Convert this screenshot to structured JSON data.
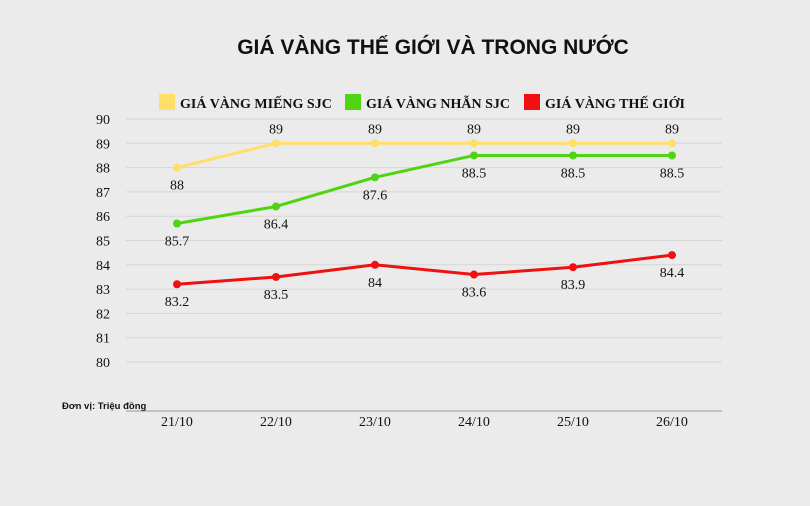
{
  "chart_data": {
    "type": "line",
    "title": "GIÁ VÀNG THẾ GIỚI VÀ TRONG NƯỚC",
    "unit_note": "Đơn vị: Triệu đồng",
    "categories": [
      "21/10",
      "22/10",
      "23/10",
      "24/10",
      "25/10",
      "26/10"
    ],
    "y_ticks": [
      "90",
      "89",
      "88",
      "87",
      "86",
      "85",
      "84",
      "83",
      "82",
      "81",
      "80"
    ],
    "tick_values": [
      90,
      89,
      88,
      87,
      86,
      85,
      84,
      83,
      82,
      81,
      80
    ],
    "grid": true,
    "legend_position": "top",
    "series": [
      {
        "name": "GIÁ VÀNG MIẾNG SJC",
        "color": "#fee068",
        "values": [
          88,
          89,
          89,
          89,
          89,
          89
        ],
        "labels": [
          "88",
          "89",
          "89",
          "89",
          "89",
          "89"
        ],
        "label_position": [
          "below",
          "above",
          "above",
          "above",
          "above",
          "above"
        ]
      },
      {
        "name": "GIÁ VÀNG NHẪN SJC",
        "color": "#4fd411",
        "values": [
          85.7,
          86.4,
          87.6,
          88.5,
          88.5,
          88.5
        ],
        "labels": [
          "85.7",
          "86.4",
          "87.6",
          "88.5",
          "88.5",
          "88.5"
        ],
        "label_position": [
          "below",
          "below",
          "below",
          "below",
          "below",
          "below"
        ]
      },
      {
        "name": "GIÁ VÀNG THẾ GIỚI",
        "color": "#f01010",
        "values": [
          83.2,
          83.5,
          84,
          83.6,
          83.9,
          84.4
        ],
        "labels": [
          "83.2",
          "83.5",
          "84",
          "83.6",
          "83.9",
          "84.4"
        ],
        "label_position": [
          "below",
          "below",
          "below",
          "below",
          "below",
          "below"
        ]
      }
    ]
  }
}
